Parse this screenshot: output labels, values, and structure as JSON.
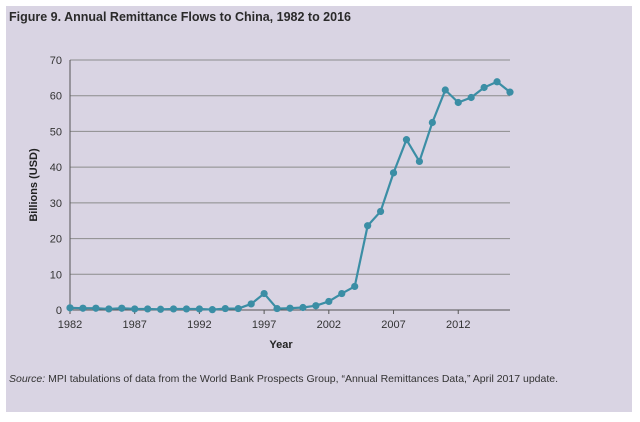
{
  "title": "Figure 9. Annual Remittance Flows to China, 1982 to 2016",
  "source_label": "Source:",
  "source_text": " MPI tabulations of data from the World Bank Prospects Group, “Annual Remittances Data,” April 2017 update.",
  "colors": {
    "line": "#3b8ea5",
    "grid": "#8c8c8c",
    "panel": "#d9d4e3"
  },
  "chart_data": {
    "type": "line",
    "title": "Figure 9. Annual Remittance Flows to China, 1982 to 2016",
    "xlabel": "Year",
    "ylabel": "Billions (USD)",
    "xlim": [
      1982,
      2016
    ],
    "ylim": [
      0,
      70
    ],
    "x_ticks": [
      1982,
      1987,
      1992,
      1997,
      2002,
      2007,
      2012
    ],
    "y_ticks": [
      0,
      10,
      20,
      30,
      40,
      50,
      60,
      70
    ],
    "grid": "horizontal",
    "x": [
      1982,
      1983,
      1984,
      1985,
      1986,
      1987,
      1988,
      1989,
      1990,
      1991,
      1992,
      1993,
      1994,
      1995,
      1996,
      1997,
      1998,
      1999,
      2000,
      2001,
      2002,
      2003,
      2004,
      2005,
      2006,
      2007,
      2008,
      2009,
      2010,
      2011,
      2012,
      2013,
      2014,
      2015,
      2016
    ],
    "values": [
      0.6,
      0.5,
      0.5,
      0.3,
      0.5,
      0.3,
      0.3,
      0.2,
      0.3,
      0.3,
      0.3,
      0.1,
      0.4,
      0.4,
      1.7,
      4.6,
      0.4,
      0.5,
      0.7,
      1.2,
      2.4,
      4.6,
      6.6,
      23.6,
      27.6,
      38.4,
      47.7,
      41.6,
      52.5,
      61.6,
      58.1,
      59.5,
      62.3,
      63.9,
      61.0
    ]
  }
}
